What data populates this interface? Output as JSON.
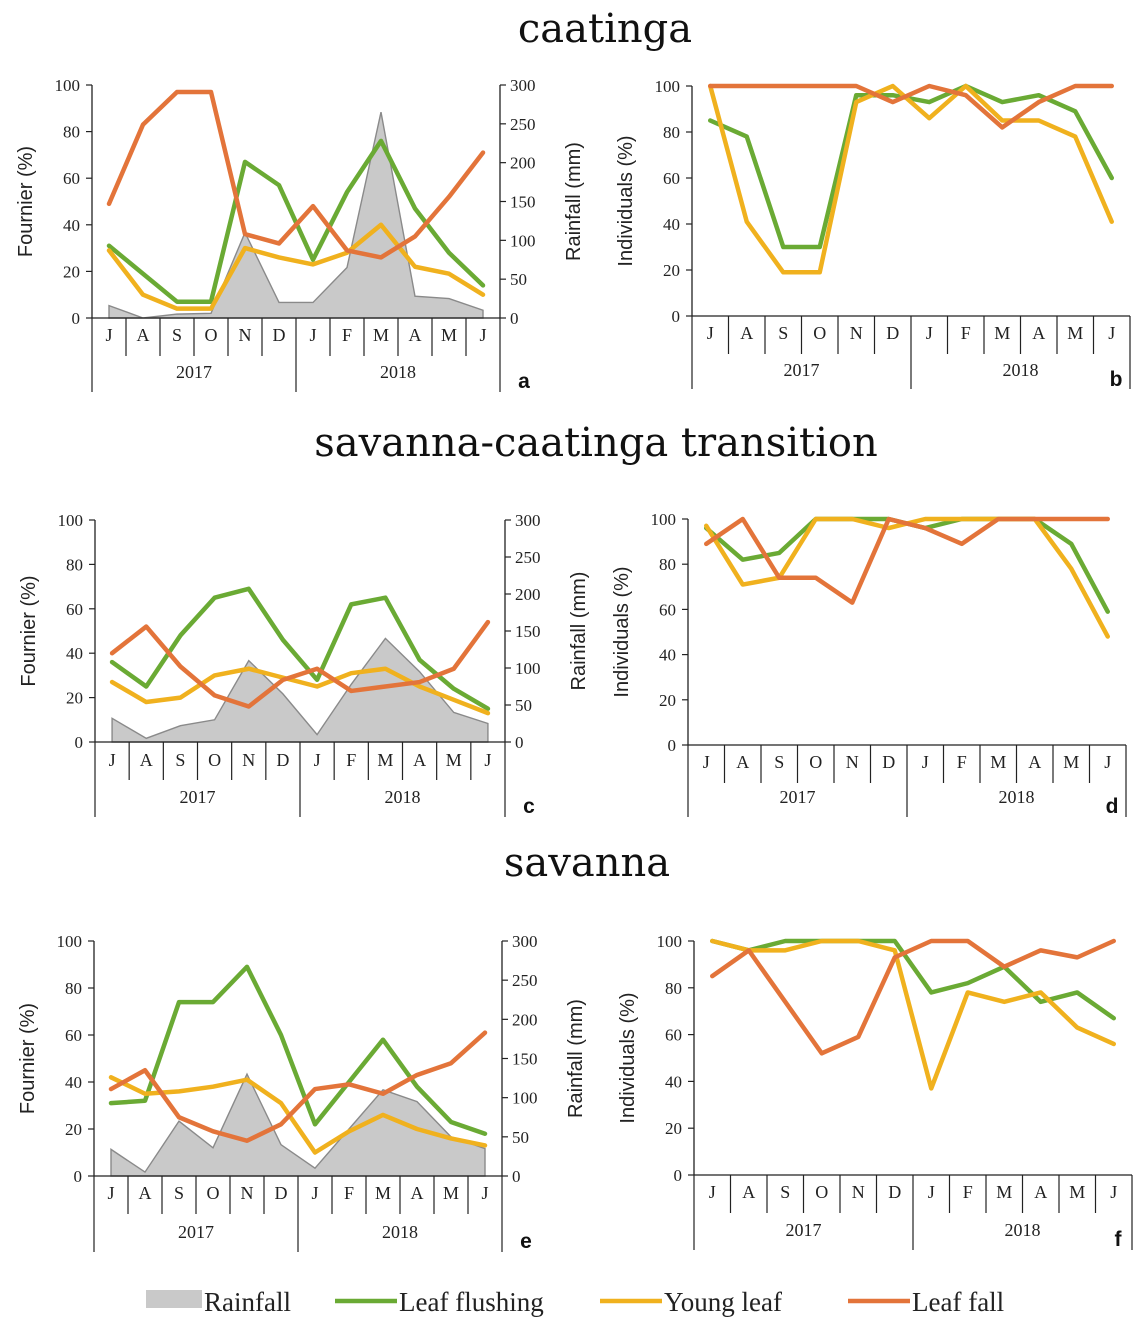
{
  "sections": [
    {
      "title": "caatinga"
    },
    {
      "title": "savanna-caatinga transition"
    },
    {
      "title": "savanna"
    }
  ],
  "colors": {
    "rainfall": "#c9c9c9",
    "rainfall_edge": "#8a8a8a",
    "leaf_flushing": "#6aaa34",
    "young_leaf": "#f0b11e",
    "leaf_fall": "#e3743a",
    "axis": "#222222"
  },
  "months": [
    "J",
    "A",
    "S",
    "O",
    "N",
    "D",
    "J",
    "F",
    "M",
    "A",
    "M",
    "J"
  ],
  "years": [
    "2017",
    "2018"
  ],
  "legend": [
    {
      "key": "rainfall",
      "label": "Rainfall",
      "kind": "area"
    },
    {
      "key": "leaf_flushing",
      "label": "Leaf flushing",
      "kind": "line"
    },
    {
      "key": "young_leaf",
      "label": "Young leaf",
      "kind": "line"
    },
    {
      "key": "leaf_fall",
      "label": "Leaf fall",
      "kind": "line"
    }
  ],
  "chart_data": [
    {
      "panel": "a",
      "section": "caatinga",
      "type": "line",
      "ylabel": "Fournier (%)",
      "y2label": "Rainfall (mm)",
      "ylim": [
        0,
        100
      ],
      "y2lim": [
        0,
        300
      ],
      "yticks": [
        0,
        20,
        40,
        60,
        80,
        100
      ],
      "y2ticks": [
        0,
        50,
        100,
        150,
        200,
        250,
        300
      ],
      "rainfall": [
        16,
        0,
        5,
        6,
        110,
        20,
        20,
        65,
        265,
        28,
        25,
        10
      ],
      "series": [
        {
          "key": "leaf_flushing",
          "values": [
            31,
            19,
            7,
            7,
            67,
            57,
            25,
            54,
            76,
            47,
            28,
            14
          ]
        },
        {
          "key": "young_leaf",
          "values": [
            29,
            10,
            4,
            4,
            30,
            26,
            23,
            28,
            40,
            22,
            19,
            10
          ]
        },
        {
          "key": "leaf_fall",
          "values": [
            49,
            83,
            97,
            97,
            36,
            32,
            48,
            29,
            26,
            35,
            52,
            71
          ]
        }
      ]
    },
    {
      "panel": "b",
      "section": "caatinga",
      "type": "line",
      "ylabel": "Individuals (%)",
      "ylim": [
        0,
        100
      ],
      "yticks": [
        0,
        20,
        40,
        60,
        80,
        100
      ],
      "series": [
        {
          "key": "leaf_flushing",
          "values": [
            85,
            78,
            30,
            30,
            96,
            96,
            93,
            100,
            93,
            96,
            89,
            60
          ]
        },
        {
          "key": "young_leaf",
          "values": [
            100,
            41,
            19,
            19,
            93,
            100,
            86,
            100,
            85,
            85,
            78,
            41
          ]
        },
        {
          "key": "leaf_fall",
          "values": [
            100,
            100,
            100,
            100,
            100,
            93,
            100,
            96,
            82,
            93,
            100,
            100
          ]
        }
      ]
    },
    {
      "panel": "c",
      "section": "savanna-caatinga transition",
      "type": "line",
      "ylabel": "Fournier (%)",
      "y2label": "Rainfall (mm)",
      "ylim": [
        0,
        100
      ],
      "y2lim": [
        0,
        300
      ],
      "yticks": [
        0,
        20,
        40,
        60,
        80,
        100
      ],
      "y2ticks": [
        0,
        50,
        100,
        150,
        200,
        250,
        300
      ],
      "rainfall": [
        32,
        5,
        22,
        30,
        110,
        65,
        10,
        78,
        140,
        95,
        40,
        25
      ],
      "series": [
        {
          "key": "leaf_flushing",
          "values": [
            36,
            25,
            48,
            65,
            69,
            46,
            28,
            62,
            65,
            37,
            24,
            15
          ]
        },
        {
          "key": "young_leaf",
          "values": [
            27,
            18,
            20,
            30,
            33,
            29,
            25,
            31,
            33,
            25,
            19,
            13
          ]
        },
        {
          "key": "leaf_fall",
          "values": [
            40,
            52,
            34,
            21,
            16,
            28,
            33,
            23,
            25,
            27,
            33,
            54
          ]
        }
      ]
    },
    {
      "panel": "d",
      "section": "savanna-caatinga transition",
      "type": "line",
      "ylabel": "Individuals (%)",
      "ylim": [
        0,
        100
      ],
      "yticks": [
        0,
        20,
        40,
        60,
        80,
        100
      ],
      "series": [
        {
          "key": "leaf_flushing",
          "values": [
            96,
            82,
            85,
            100,
            100,
            100,
            96,
            100,
            100,
            100,
            89,
            59
          ]
        },
        {
          "key": "young_leaf",
          "values": [
            97,
            71,
            74,
            100,
            100,
            96,
            100,
            100,
            100,
            100,
            78,
            48
          ]
        },
        {
          "key": "leaf_fall",
          "values": [
            89,
            100,
            74,
            74,
            63,
            100,
            96,
            89,
            100,
            100,
            100,
            100
          ]
        }
      ]
    },
    {
      "panel": "e",
      "section": "savanna",
      "type": "line",
      "ylabel": "Fournier (%)",
      "y2label": "Rainfall (mm)",
      "ylim": [
        0,
        100
      ],
      "y2lim": [
        0,
        300
      ],
      "yticks": [
        0,
        20,
        40,
        60,
        80,
        100
      ],
      "y2ticks": [
        0,
        50,
        100,
        150,
        200,
        250,
        300
      ],
      "rainfall": [
        34,
        5,
        70,
        36,
        130,
        40,
        10,
        60,
        110,
        95,
        50,
        35
      ],
      "series": [
        {
          "key": "leaf_flushing",
          "values": [
            31,
            32,
            74,
            74,
            89,
            60,
            22,
            40,
            58,
            38,
            23,
            18
          ]
        },
        {
          "key": "young_leaf",
          "values": [
            42,
            35,
            36,
            38,
            41,
            31,
            10,
            19,
            26,
            20,
            16,
            13
          ]
        },
        {
          "key": "leaf_fall",
          "values": [
            37,
            45,
            25,
            19,
            15,
            22,
            37,
            39,
            35,
            43,
            48,
            61
          ]
        }
      ]
    },
    {
      "panel": "f",
      "section": "savanna",
      "type": "line",
      "ylabel": "Individuals (%)",
      "ylim": [
        0,
        100
      ],
      "yticks": [
        0,
        20,
        40,
        60,
        80,
        100
      ],
      "series": [
        {
          "key": "leaf_flushing",
          "values": [
            100,
            96,
            100,
            100,
            100,
            100,
            78,
            82,
            89,
            74,
            78,
            67
          ]
        },
        {
          "key": "young_leaf",
          "values": [
            100,
            96,
            96,
            100,
            100,
            96,
            37,
            78,
            74,
            78,
            63,
            56
          ]
        },
        {
          "key": "leaf_fall",
          "values": [
            85,
            96,
            74,
            52,
            59,
            93,
            100,
            100,
            89,
            96,
            93,
            100
          ]
        }
      ]
    }
  ]
}
